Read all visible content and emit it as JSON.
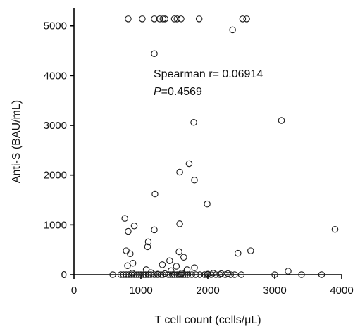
{
  "chart_data": {
    "type": "scatter",
    "xlabel": "T cell count (cells/μL)",
    "ylabel": "Anti-S (BAU/mL)",
    "xlim": [
      0,
      4000
    ],
    "ylim": [
      0,
      5350
    ],
    "xticks": [
      0,
      1000,
      2000,
      3000,
      4000
    ],
    "yticks": [
      0,
      1000,
      2000,
      3000,
      4000,
      5000
    ],
    "grid": false,
    "annotation": {
      "line1": "Spearman r= 0.06914",
      "line2_italic": "P",
      "line2_rest": "=0.4569"
    },
    "series": [
      {
        "points": [
          [
            810,
            5140
          ],
          [
            1020,
            5140
          ],
          [
            1200,
            5140
          ],
          [
            1280,
            5140
          ],
          [
            1330,
            5140
          ],
          [
            1360,
            5140
          ],
          [
            1500,
            5140
          ],
          [
            1540,
            5140
          ],
          [
            1600,
            5140
          ],
          [
            1870,
            5140
          ],
          [
            2520,
            5140
          ],
          [
            2580,
            5140
          ],
          [
            2370,
            4920
          ],
          [
            1200,
            4440
          ],
          [
            3100,
            3100
          ],
          [
            1790,
            3060
          ],
          [
            1720,
            2230
          ],
          [
            1580,
            2060
          ],
          [
            1800,
            1900
          ],
          [
            1990,
            1420
          ],
          [
            1210,
            1620
          ],
          [
            760,
            1130
          ],
          [
            810,
            870
          ],
          [
            900,
            980
          ],
          [
            1580,
            1020
          ],
          [
            1200,
            900
          ],
          [
            3900,
            910
          ],
          [
            1110,
            660
          ],
          [
            1100,
            560
          ],
          [
            780,
            480
          ],
          [
            840,
            420
          ],
          [
            1570,
            460
          ],
          [
            1640,
            350
          ],
          [
            2640,
            480
          ],
          [
            2450,
            430
          ],
          [
            880,
            230
          ],
          [
            800,
            180
          ],
          [
            1430,
            280
          ],
          [
            1320,
            200
          ],
          [
            1800,
            140
          ],
          [
            1690,
            100
          ],
          [
            1080,
            100
          ],
          [
            1530,
            170
          ],
          [
            1450,
            80
          ],
          [
            2080,
            30
          ],
          [
            2300,
            20
          ],
          [
            3200,
            70
          ],
          [
            580,
            0
          ],
          [
            700,
            0
          ],
          [
            740,
            0
          ],
          [
            780,
            0
          ],
          [
            820,
            0
          ],
          [
            860,
            0
          ],
          [
            900,
            0
          ],
          [
            940,
            0
          ],
          [
            970,
            0
          ],
          [
            1000,
            0
          ],
          [
            1040,
            0
          ],
          [
            1070,
            0
          ],
          [
            1110,
            0
          ],
          [
            1150,
            0
          ],
          [
            1200,
            0
          ],
          [
            1250,
            0
          ],
          [
            1300,
            0
          ],
          [
            1330,
            0
          ],
          [
            1410,
            0
          ],
          [
            1440,
            0
          ],
          [
            1470,
            0
          ],
          [
            1500,
            0
          ],
          [
            1540,
            0
          ],
          [
            1570,
            0
          ],
          [
            1600,
            0
          ],
          [
            1630,
            0
          ],
          [
            1660,
            0
          ],
          [
            1700,
            0
          ],
          [
            1760,
            0
          ],
          [
            1820,
            0
          ],
          [
            1880,
            0
          ],
          [
            1950,
            0
          ],
          [
            1990,
            0
          ],
          [
            2050,
            0
          ],
          [
            2120,
            0
          ],
          [
            2180,
            0
          ],
          [
            2260,
            0
          ],
          [
            2340,
            0
          ],
          [
            2400,
            0
          ],
          [
            2500,
            0
          ],
          [
            3000,
            0
          ],
          [
            3400,
            0
          ],
          [
            3700,
            0
          ],
          [
            870,
            30
          ],
          [
            1150,
            40
          ],
          [
            1610,
            30
          ],
          [
            1360,
            20
          ],
          [
            1250,
            10
          ],
          [
            2000,
            10
          ],
          [
            2200,
            20
          ]
        ]
      }
    ]
  }
}
